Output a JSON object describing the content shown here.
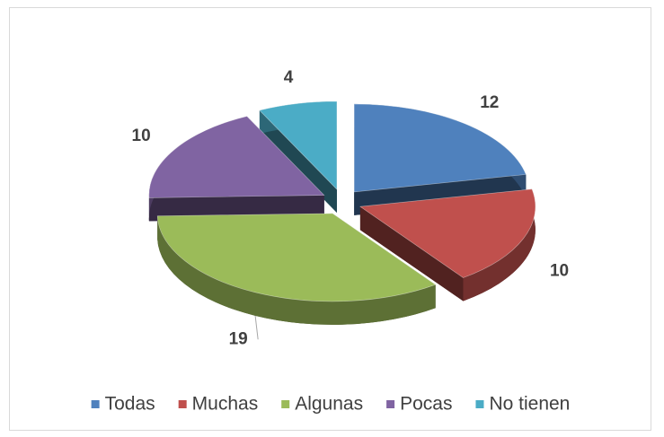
{
  "chart_data": {
    "type": "pie",
    "three_d": true,
    "exploded": true,
    "categories": [
      "Todas",
      "Muchas",
      "Algunas",
      "Pocas",
      "No tienen"
    ],
    "values": [
      12,
      10,
      19,
      10,
      4
    ],
    "colors": [
      "#4f81bd",
      "#c0504d",
      "#9bbb59",
      "#8064a2",
      "#4bacc6"
    ],
    "legend": "bottom"
  }
}
